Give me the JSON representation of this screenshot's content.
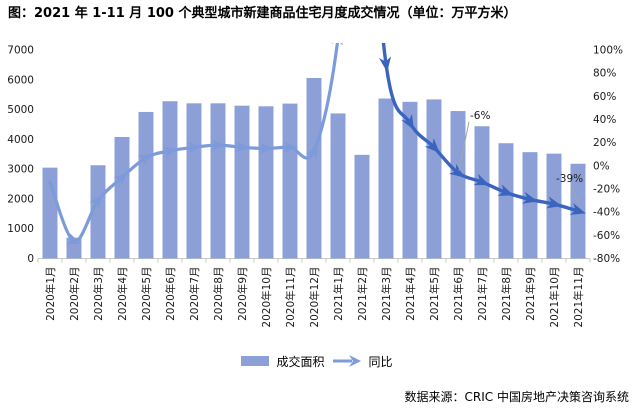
{
  "title": "图：2021 年 1-11 月 100 个典型城市新建商品住宅月度成交情况（单位：万平方米）",
  "source": "数据来源：CRIC 中国房地产决策咨询系统",
  "legend": {
    "bar_label": "成交面积",
    "line_label": "同比"
  },
  "colors": {
    "bar": "#8CA0D7",
    "line_2020": "#7D9BDB",
    "line_2021": "#3A64BE",
    "axis": "#C8C8C8",
    "leader": "#A6A6A6",
    "label_text": "#1a1a1a"
  },
  "chart_data": {
    "type": "bar+line",
    "categories": [
      "2020年1月",
      "2020年2月",
      "2020年3月",
      "2020年4月",
      "2020年5月",
      "2020年6月",
      "2020年7月",
      "2020年8月",
      "2020年9月",
      "2020年10月",
      "2020年11月",
      "2020年12月",
      "2021年1月",
      "2021年2月",
      "2021年3月",
      "2021年4月",
      "2021年5月",
      "2021年6月",
      "2021年7月",
      "2021年8月",
      "2021年9月",
      "2021年10月",
      "2021年11月"
    ],
    "series": [
      {
        "name": "成交面积",
        "type": "bar",
        "axis": "left",
        "unit": "万平方米",
        "values": [
          3050,
          700,
          3130,
          4080,
          4920,
          5280,
          5210,
          5210,
          5130,
          5110,
          5200,
          6060,
          4870,
          3480,
          5370,
          5260,
          5340,
          4950,
          4440,
          3870,
          3570,
          3520,
          3180
        ]
      },
      {
        "name": "同比",
        "type": "line",
        "axis": "right",
        "unit": "%",
        "values": [
          -14,
          -65,
          -30,
          -10,
          7,
          13,
          16,
          18,
          16,
          15,
          16,
          13,
          110,
          335,
          88,
          37,
          16,
          -6,
          -14,
          -23,
          -29,
          -33,
          -39
        ],
        "note": "2021年1月与2021年2月同比超出右轴上限100%，曲线越出图区顶部；该两值为绘图估计"
      }
    ],
    "left_axis": {
      "min": 0,
      "max": 7000,
      "step": 1000,
      "tick_labels": [
        "0",
        "1000",
        "2000",
        "3000",
        "4000",
        "5000",
        "6000",
        "7000"
      ]
    },
    "right_axis": {
      "min": -80,
      "max": 100,
      "step": 20,
      "tick_labels": [
        "100%",
        "80%",
        "60%",
        "40%",
        "20%",
        "0%",
        "-20%",
        "-40%",
        "-60%",
        "-80%"
      ]
    },
    "annotations": [
      {
        "label": "-6%",
        "category": "2021年6月"
      },
      {
        "label": "-39%",
        "category": "2021年11月"
      }
    ],
    "grid": false,
    "legend_position": "bottom-center"
  }
}
